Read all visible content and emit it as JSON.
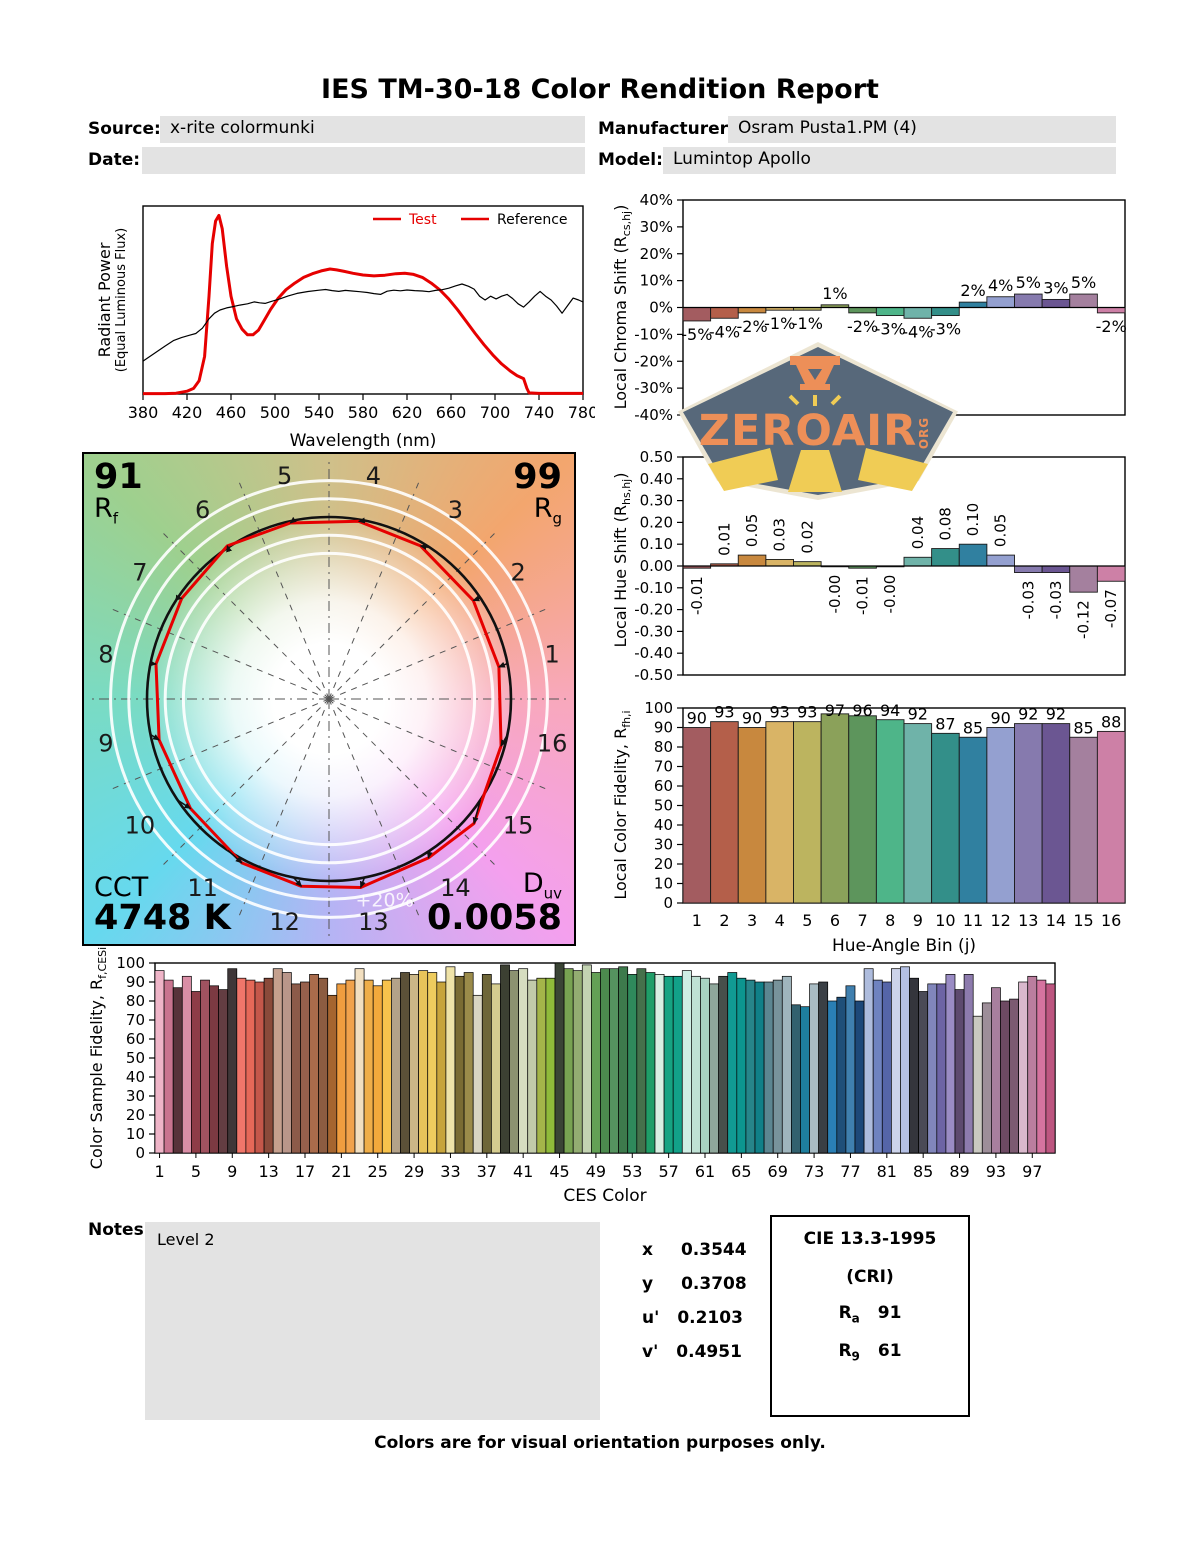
{
  "page": {
    "title": "IES TM-30-18 Color Rendition Report",
    "footer": "Colors are for visual orientation purposes only."
  },
  "header": {
    "source_label": "Source:",
    "source_value": "x-rite colormunki",
    "date_label": "Date:",
    "date_value": "",
    "manufacturer_label": "Manufacturer:",
    "manufacturer_value": "Osram Pusta1.PM (4)",
    "model_label": "Model:",
    "model_value": "Lumintop Apollo"
  },
  "notes": {
    "label": "Notes:",
    "text": "Level 2"
  },
  "chromaticity": {
    "x_label": "x",
    "x_value": "0.3544",
    "y_label": "y",
    "y_value": "0.3708",
    "u_label": "u'",
    "u_value": "0.2103",
    "v_label": "v'",
    "v_value": "0.4951"
  },
  "cri_box": {
    "title": "CIE 13.3-1995",
    "subtitle": "(CRI)",
    "ra_main": "R",
    "ra_sub": "a",
    "ra_value": "91",
    "r9_main": "R",
    "r9_sub": "9",
    "r9_value": "61"
  },
  "icon_graphic": {
    "rf_value": "91",
    "rf_main": "R",
    "rf_sub": "f",
    "rg_value": "99",
    "rg_main": "R",
    "rg_sub": "g",
    "cct_label": "CCT",
    "cct_value": "4748 K",
    "duv_main": "D",
    "duv_sub": "uv",
    "duv_value": "0.0058",
    "ring_label": "+20%"
  },
  "logo": {
    "word": "ZEROAIR",
    "org": "ORG"
  },
  "ylabels": {
    "spd_l1": "Radiant Power",
    "spd_l2": "(Equal Luminous Flux)",
    "chroma_main": "Local Chroma Shift (R",
    "chroma_sub": "cs,hj",
    "chroma_close": ")",
    "hue_main": "Local Hue Shift (R",
    "hue_sub": "hs,hj",
    "hue_close": ")",
    "fid_main": "Local Color Fidelity, R",
    "fid_sub": "fh,i",
    "fid_close": "",
    "ces_main": "Color Sample Fidelity, R",
    "ces_sub": "f,CESi",
    "ces_close": ""
  },
  "chart_data": [
    {
      "id": "spd",
      "type": "line",
      "xlabel": "Wavelength (nm)",
      "ylabel": "Radiant Power (Equal Luminous Flux)",
      "xlim": [
        380,
        780
      ],
      "ylim": [
        0,
        1
      ],
      "xticks": [
        380,
        420,
        460,
        500,
        540,
        580,
        620,
        660,
        700,
        740,
        780
      ],
      "legend": [
        "Test",
        "Reference"
      ],
      "series": [
        {
          "name": "Test",
          "color": "#e60000",
          "width": 3,
          "points": [
            [
              380,
              0.002
            ],
            [
              400,
              0.002
            ],
            [
              410,
              0.004
            ],
            [
              420,
              0.015
            ],
            [
              426,
              0.03
            ],
            [
              431,
              0.07
            ],
            [
              436,
              0.2
            ],
            [
              440,
              0.52
            ],
            [
              443,
              0.8
            ],
            [
              446,
              0.92
            ],
            [
              449,
              0.95
            ],
            [
              452,
              0.88
            ],
            [
              456,
              0.68
            ],
            [
              460,
              0.52
            ],
            [
              465,
              0.4
            ],
            [
              470,
              0.345
            ],
            [
              475,
              0.315
            ],
            [
              480,
              0.315
            ],
            [
              485,
              0.34
            ],
            [
              490,
              0.39
            ],
            [
              496,
              0.45
            ],
            [
              503,
              0.51
            ],
            [
              510,
              0.555
            ],
            [
              518,
              0.59
            ],
            [
              526,
              0.62
            ],
            [
              534,
              0.64
            ],
            [
              542,
              0.655
            ],
            [
              550,
              0.665
            ],
            [
              556,
              0.66
            ],
            [
              563,
              0.652
            ],
            [
              571,
              0.642
            ],
            [
              580,
              0.633
            ],
            [
              590,
              0.628
            ],
            [
              600,
              0.632
            ],
            [
              610,
              0.64
            ],
            [
              618,
              0.642
            ],
            [
              626,
              0.636
            ],
            [
              634,
              0.62
            ],
            [
              642,
              0.59
            ],
            [
              650,
              0.553
            ],
            [
              658,
              0.505
            ],
            [
              666,
              0.448
            ],
            [
              674,
              0.385
            ],
            [
              682,
              0.322
            ],
            [
              690,
              0.262
            ],
            [
              698,
              0.208
            ],
            [
              706,
              0.16
            ],
            [
              714,
              0.122
            ],
            [
              720,
              0.098
            ],
            [
              726,
              0.082
            ],
            [
              729,
              0.03
            ],
            [
              731,
              0.006
            ],
            [
              740,
              0.003
            ],
            [
              780,
              0.003
            ]
          ]
        },
        {
          "name": "Reference",
          "color": "#000000",
          "width": 1.2,
          "points": [
            [
              380,
              0.175
            ],
            [
              390,
              0.215
            ],
            [
              400,
              0.255
            ],
            [
              408,
              0.285
            ],
            [
              415,
              0.3
            ],
            [
              422,
              0.312
            ],
            [
              428,
              0.322
            ],
            [
              434,
              0.35
            ],
            [
              440,
              0.4
            ],
            [
              445,
              0.43
            ],
            [
              450,
              0.447
            ],
            [
              456,
              0.458
            ],
            [
              462,
              0.465
            ],
            [
              468,
              0.473
            ],
            [
              475,
              0.48
            ],
            [
              481,
              0.49
            ],
            [
              486,
              0.485
            ],
            [
              491,
              0.482
            ],
            [
              497,
              0.493
            ],
            [
              504,
              0.505
            ],
            [
              512,
              0.522
            ],
            [
              520,
              0.535
            ],
            [
              530,
              0.545
            ],
            [
              540,
              0.552
            ],
            [
              546,
              0.556
            ],
            [
              552,
              0.55
            ],
            [
              558,
              0.546
            ],
            [
              564,
              0.551
            ],
            [
              570,
              0.548
            ],
            [
              577,
              0.544
            ],
            [
              584,
              0.54
            ],
            [
              590,
              0.534
            ],
            [
              596,
              0.53
            ],
            [
              602,
              0.547
            ],
            [
              608,
              0.552
            ],
            [
              614,
              0.549
            ],
            [
              620,
              0.553
            ],
            [
              627,
              0.55
            ],
            [
              634,
              0.548
            ],
            [
              640,
              0.544
            ],
            [
              646,
              0.551
            ],
            [
              652,
              0.555
            ],
            [
              658,
              0.563
            ],
            [
              664,
              0.575
            ],
            [
              670,
              0.585
            ],
            [
              676,
              0.573
            ],
            [
              681,
              0.558
            ],
            [
              686,
              0.52
            ],
            [
              691,
              0.5
            ],
            [
              696,
              0.52
            ],
            [
              701,
              0.506
            ],
            [
              706,
              0.52
            ],
            [
              711,
              0.53
            ],
            [
              716,
              0.508
            ],
            [
              721,
              0.48
            ],
            [
              726,
              0.462
            ],
            [
              731,
              0.49
            ],
            [
              736,
              0.52
            ],
            [
              741,
              0.546
            ],
            [
              746,
              0.52
            ],
            [
              751,
              0.5
            ],
            [
              756,
              0.468
            ],
            [
              761,
              0.43
            ],
            [
              766,
              0.47
            ],
            [
              771,
              0.51
            ],
            [
              776,
              0.5
            ],
            [
              780,
              0.49
            ]
          ]
        }
      ]
    },
    {
      "id": "chroma",
      "type": "bar",
      "ylim": [
        -40,
        40
      ],
      "ystep": 10,
      "ytick_suffix": "%",
      "categories": [
        1,
        2,
        3,
        4,
        5,
        6,
        7,
        8,
        9,
        10,
        11,
        12,
        13,
        14,
        15,
        16
      ],
      "values": [
        -5,
        -4,
        -2,
        -1,
        -1,
        1,
        -2,
        -3,
        -4,
        -3,
        2,
        4,
        5,
        3,
        5,
        -2
      ],
      "labels": [
        "-5%",
        "-4%",
        "-2%",
        "-1%",
        "-1%",
        "1%",
        "-2%",
        "-3%",
        "-4%",
        "-3%",
        "2%",
        "4%",
        "5%",
        "3%",
        "5%",
        "-2%"
      ],
      "colors": [
        "#A35C60",
        "#B45F4A",
        "#C8883E",
        "#D9B466",
        "#BCB45F",
        "#8BA15A",
        "#5D955C",
        "#4EB589",
        "#6FB3A9",
        "#338F89",
        "#3080A0",
        "#94A0D0",
        "#867AAE",
        "#6B5692",
        "#A4809E",
        "#CD80A6"
      ]
    },
    {
      "id": "hue",
      "type": "bar",
      "ylim": [
        -0.5,
        0.5
      ],
      "ystep": 0.1,
      "rotated_labels": true,
      "categories": [
        1,
        2,
        3,
        4,
        5,
        6,
        7,
        8,
        9,
        10,
        11,
        12,
        13,
        14,
        15,
        16
      ],
      "values": [
        -0.01,
        0.01,
        0.05,
        0.03,
        0.02,
        -0.003,
        -0.01,
        -0.003,
        0.04,
        0.08,
        0.1,
        0.05,
        -0.03,
        -0.03,
        -0.12,
        -0.07
      ],
      "labels": [
        "-0.01",
        "0.01",
        "0.05",
        "0.03",
        "0.02",
        "-0.00",
        "-0.01",
        "-0.00",
        "0.04",
        "0.08",
        "0.10",
        "0.05",
        "-0.03",
        "-0.03",
        "-0.12",
        "-0.07"
      ],
      "colors": [
        "#A35C60",
        "#B45F4A",
        "#C8883E",
        "#D9B466",
        "#BCB45F",
        "#8BA15A",
        "#5D955C",
        "#4EB589",
        "#6FB3A9",
        "#338F89",
        "#3080A0",
        "#94A0D0",
        "#867AAE",
        "#6B5692",
        "#A4809E",
        "#CD80A6"
      ]
    },
    {
      "id": "fid",
      "type": "bar",
      "xlabel": "Hue-Angle Bin (j)",
      "ylim": [
        0,
        100
      ],
      "ystep": 10,
      "categories": [
        1,
        2,
        3,
        4,
        5,
        6,
        7,
        8,
        9,
        10,
        11,
        12,
        13,
        14,
        15,
        16
      ],
      "values": [
        90,
        93,
        90,
        93,
        93,
        97,
        96,
        94,
        92,
        87,
        85,
        90,
        92,
        92,
        85,
        88
      ],
      "colors": [
        "#A35C60",
        "#B45F4A",
        "#C8883E",
        "#D9B466",
        "#BCB45F",
        "#8BA15A",
        "#5D955C",
        "#4EB589",
        "#6FB3A9",
        "#338F89",
        "#3080A0",
        "#94A0D0",
        "#867AAE",
        "#6B5692",
        "#A4809E",
        "#CD80A6"
      ]
    },
    {
      "id": "ces",
      "type": "bar",
      "xlabel": "CES Color",
      "ylim": [
        0,
        100
      ],
      "ystep": 10,
      "xticks": [
        1,
        5,
        9,
        13,
        17,
        21,
        25,
        29,
        33,
        37,
        41,
        45,
        49,
        53,
        57,
        61,
        65,
        69,
        73,
        77,
        81,
        85,
        89,
        93,
        97
      ],
      "values": [
        96,
        91,
        87,
        93,
        85,
        91,
        88,
        86,
        97,
        92,
        91,
        90,
        92,
        97,
        95,
        89,
        90,
        94,
        92,
        83,
        89,
        91,
        97,
        91,
        88,
        91,
        92,
        95,
        94,
        96,
        95,
        90,
        98,
        93,
        95,
        83,
        94,
        89,
        99,
        96,
        97,
        91,
        92,
        92,
        100,
        97,
        96,
        99,
        95,
        97,
        97,
        98,
        94,
        97,
        95,
        94,
        93,
        93,
        96,
        93,
        92,
        89,
        93,
        95,
        92,
        91,
        90,
        90,
        91,
        93,
        78,
        77,
        89,
        90,
        80,
        82,
        88,
        80,
        97,
        91,
        90,
        97,
        98,
        92,
        85,
        89,
        89,
        94,
        86,
        94,
        72,
        79,
        87,
        80,
        81,
        90,
        93,
        91,
        89
      ],
      "colors": [
        "#efb5c8",
        "#c9748f",
        "#58333a",
        "#da8ea6",
        "#8e3c47",
        "#a05260",
        "#7c3a42",
        "#633d42",
        "#3f3738",
        "#f0766a",
        "#e56858",
        "#c4574a",
        "#8a4a3a",
        "#c5a08e",
        "#b9968a",
        "#8c5a49",
        "#97604c",
        "#a96b4b",
        "#8c5c41",
        "#a5652f",
        "#ef9d3f",
        "#f0a24c",
        "#f2dfc0",
        "#efae49",
        "#f2a93c",
        "#f7c24c",
        "#b3a289",
        "#5c5138",
        "#cbb787",
        "#e7c35a",
        "#eecc5e",
        "#c7a43c",
        "#efe3a8",
        "#7a6b33",
        "#9b8b4a",
        "#d9d5c2",
        "#6e6638",
        "#d5cc8f",
        "#3c4032",
        "#8c9270",
        "#d6ddc0",
        "#c2cbaa",
        "#a4b549",
        "#8fba3a",
        "#3a4435",
        "#78a352",
        "#93ad72",
        "#c3d3b2",
        "#63a055",
        "#4c8a4e",
        "#55935f",
        "#3d7a4c",
        "#2f8a5c",
        "#45714b",
        "#1f9e68",
        "#d8efe2",
        "#16a382",
        "#12a189",
        "#cfeee4",
        "#bfe1d4",
        "#a8d2c2",
        "#8fa79b",
        "#474f4b",
        "#119a93",
        "#0d958f",
        "#27858a",
        "#108088",
        "#5c8691",
        "#78939b",
        "#9fb5bd",
        "#32616e",
        "#1e7f9e",
        "#a9bcc4",
        "#3a3f45",
        "#2a7fb5",
        "#1f4f79",
        "#3f7fae",
        "#1d4878",
        "#aebcdd",
        "#6f83c0",
        "#5565a8",
        "#ccd3ea",
        "#b4c0e4",
        "#34353c",
        "#4a4a56",
        "#8186bb",
        "#6d64a5",
        "#9a8cc4",
        "#5d4a6e",
        "#8d7bad",
        "#c9c8c0",
        "#9d8e99",
        "#a87f9e",
        "#6d4a63",
        "#7c5a71",
        "#d9b8cc",
        "#bb7e9f",
        "#d5739f",
        "#bd5680"
      ]
    },
    {
      "id": "vector",
      "type": "scatter",
      "rf": 91,
      "rg": 99,
      "cct": "4748 K",
      "duv": "0.0058",
      "bins": [
        1,
        2,
        3,
        4,
        5,
        6,
        7,
        8,
        9,
        10,
        11,
        12,
        13,
        14,
        15,
        16
      ],
      "rings_pct": [
        -20,
        -10,
        10,
        20
      ]
    }
  ]
}
